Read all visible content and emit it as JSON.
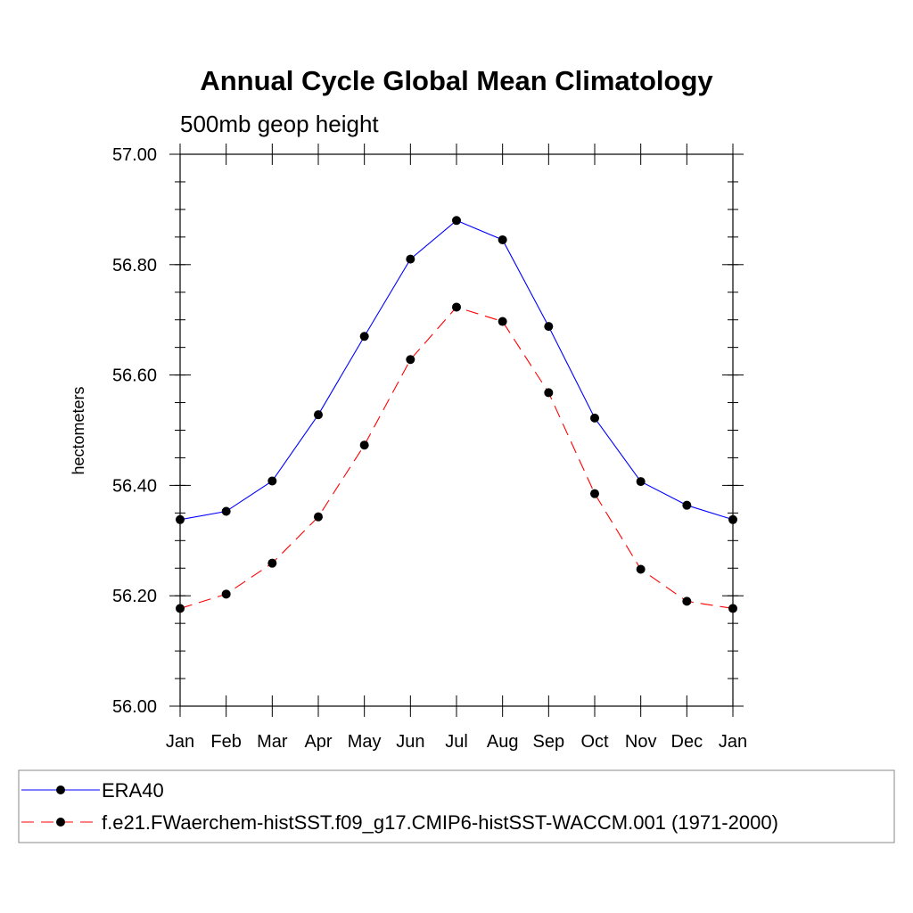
{
  "chart_data": {
    "type": "line",
    "title": "Annual Cycle Global Mean Climatology",
    "subtitle": "500mb geop height",
    "xlabel": "",
    "ylabel": "hectometers",
    "categories": [
      "Jan",
      "Feb",
      "Mar",
      "Apr",
      "May",
      "Jun",
      "Jul",
      "Aug",
      "Sep",
      "Oct",
      "Nov",
      "Dec",
      "Jan"
    ],
    "ylim": [
      56.0,
      57.0
    ],
    "yticks": [
      56.0,
      56.2,
      56.4,
      56.6,
      56.8,
      57.0
    ],
    "ytick_labels": [
      "56.00",
      "56.20",
      "56.40",
      "56.60",
      "56.80",
      "57.00"
    ],
    "grid": false,
    "legend_position": "bottom",
    "series": [
      {
        "name": "ERA40",
        "color": "#0000ff",
        "line_style": "solid",
        "marker": "filled-circle",
        "values": [
          56.338,
          56.353,
          56.408,
          56.528,
          56.67,
          56.81,
          56.88,
          56.845,
          56.688,
          56.522,
          56.407,
          56.364,
          56.338
        ]
      },
      {
        "name": "f.e21.FWaerchem-histSST.f09_g17.CMIP6-histSST-WACCM.001 (1971-2000)",
        "color": "#ff0000",
        "line_style": "dashed",
        "marker": "filled-circle",
        "values": [
          56.177,
          56.203,
          56.259,
          56.343,
          56.473,
          56.628,
          56.723,
          56.697,
          56.568,
          56.385,
          56.248,
          56.19,
          56.177
        ]
      }
    ]
  }
}
